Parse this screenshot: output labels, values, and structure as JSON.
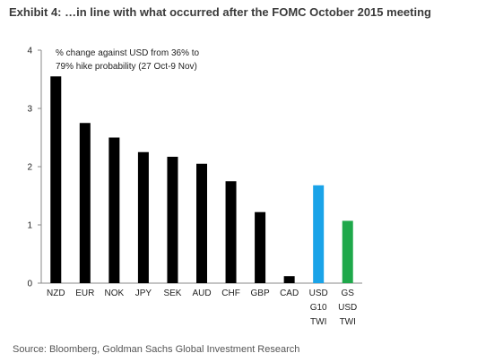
{
  "chart_data": {
    "type": "bar",
    "title": "Exhibit 4: …in line with what occurred after the FOMC October 2015 meeting",
    "annotation_lines": [
      "% change against USD from 36% to",
      "79% hike probability (27 Oct-9 Nov)"
    ],
    "categories": [
      [
        "NZD"
      ],
      [
        "EUR"
      ],
      [
        "NOK"
      ],
      [
        "JPY"
      ],
      [
        "SEK"
      ],
      [
        "AUD"
      ],
      [
        "CHF"
      ],
      [
        "GBP"
      ],
      [
        "CAD"
      ],
      [
        "USD",
        "G10",
        "TWI"
      ],
      [
        "GS",
        "USD",
        "TWI"
      ]
    ],
    "values": [
      3.55,
      2.75,
      2.5,
      2.25,
      2.17,
      2.05,
      1.75,
      1.22,
      0.12,
      1.68,
      1.07
    ],
    "colors": [
      "#000000",
      "#000000",
      "#000000",
      "#000000",
      "#000000",
      "#000000",
      "#000000",
      "#000000",
      "#000000",
      "#1aa3e8",
      "#1ea84a"
    ],
    "ylim": [
      0,
      4
    ],
    "yticks": [
      "0",
      "1",
      "2",
      "3",
      "4"
    ],
    "grid": false,
    "xlabel": "",
    "ylabel": ""
  },
  "source": "Source: Bloomberg, Goldman Sachs Global Investment Research"
}
